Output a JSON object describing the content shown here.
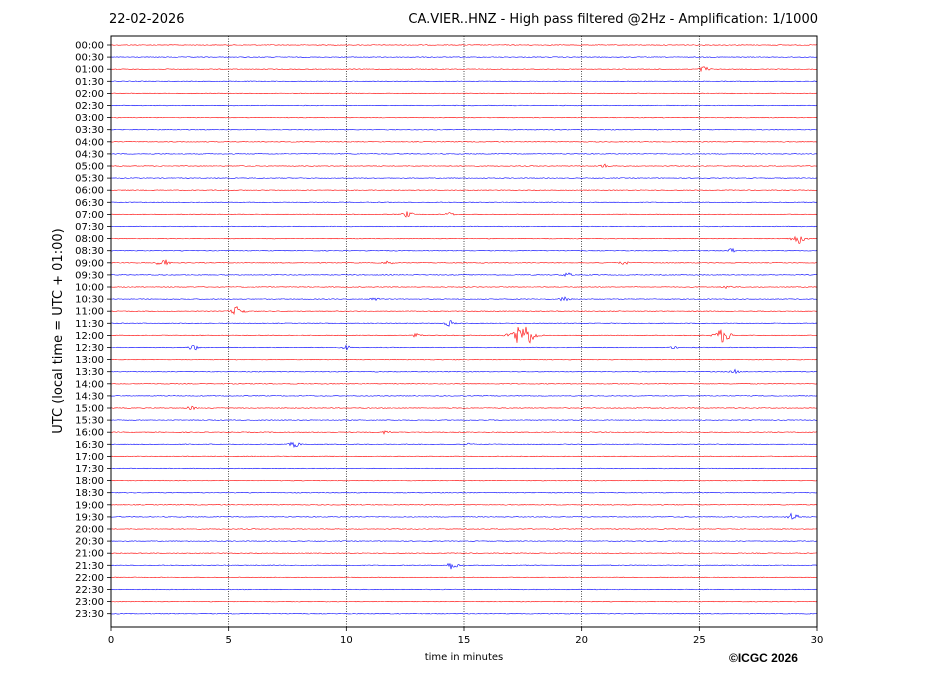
{
  "chart_data": {
    "type": "line",
    "date": "22-02-2026",
    "title": "CA.VIER..HNZ - High pass filtered @2Hz - Amplification: 1/1000",
    "xlabel": "time in minutes",
    "ylabel": "UTC (local time = UTC + 01:00)",
    "xlim": [
      0,
      30
    ],
    "xticks": [
      "0",
      "5",
      "10",
      "15",
      "20",
      "25",
      "30"
    ],
    "vertical_grid_at": [
      5,
      10,
      15,
      20,
      25
    ],
    "trace_labels": [
      "00:00",
      "00:30",
      "01:00",
      "01:30",
      "02:00",
      "02:30",
      "03:00",
      "03:30",
      "04:00",
      "04:30",
      "05:00",
      "05:30",
      "06:00",
      "06:30",
      "07:00",
      "07:30",
      "08:00",
      "08:30",
      "09:00",
      "09:30",
      "10:00",
      "10:30",
      "11:00",
      "11:30",
      "12:00",
      "12:30",
      "13:00",
      "13:30",
      "14:00",
      "14:30",
      "15:00",
      "15:30",
      "16:00",
      "16:30",
      "17:00",
      "17:30",
      "18:00",
      "18:30",
      "19:00",
      "19:30",
      "20:00",
      "20:30",
      "21:00",
      "21:30",
      "22:00",
      "22:30",
      "23:00",
      "23:30"
    ],
    "trace_colors": [
      "#ff0000",
      "#0000ff"
    ],
    "events": [
      {
        "trace": "01:00",
        "minute": 25.2,
        "amp": 3
      },
      {
        "trace": "05:00",
        "minute": 21.0,
        "amp": 2
      },
      {
        "trace": "07:00",
        "minute": 12.6,
        "amp": 3
      },
      {
        "trace": "07:00",
        "minute": 14.4,
        "amp": 2
      },
      {
        "trace": "08:00",
        "minute": 29.2,
        "amp": 5
      },
      {
        "trace": "08:30",
        "minute": 26.4,
        "amp": 2
      },
      {
        "trace": "09:00",
        "minute": 2.2,
        "amp": 4
      },
      {
        "trace": "09:00",
        "minute": 11.8,
        "amp": 2
      },
      {
        "trace": "09:00",
        "minute": 21.8,
        "amp": 2
      },
      {
        "trace": "09:30",
        "minute": 19.4,
        "amp": 2
      },
      {
        "trace": "10:00",
        "minute": 26.2,
        "amp": 2
      },
      {
        "trace": "10:30",
        "minute": 19.3,
        "amp": 3
      },
      {
        "trace": "10:30",
        "minute": 11.2,
        "amp": 2
      },
      {
        "trace": "11:00",
        "minute": 5.4,
        "amp": 5
      },
      {
        "trace": "11:30",
        "minute": 14.4,
        "amp": 3
      },
      {
        "trace": "12:00",
        "minute": 17.5,
        "amp": 12
      },
      {
        "trace": "12:00",
        "minute": 26.0,
        "amp": 7
      },
      {
        "trace": "12:00",
        "minute": 13.0,
        "amp": 2
      },
      {
        "trace": "12:30",
        "minute": 3.5,
        "amp": 3
      },
      {
        "trace": "12:30",
        "minute": 24.0,
        "amp": 2
      },
      {
        "trace": "12:30",
        "minute": 10.0,
        "amp": 2
      },
      {
        "trace": "13:30",
        "minute": 26.5,
        "amp": 2
      },
      {
        "trace": "15:00",
        "minute": 3.4,
        "amp": 2
      },
      {
        "trace": "16:00",
        "minute": 11.7,
        "amp": 2
      },
      {
        "trace": "16:30",
        "minute": 7.8,
        "amp": 3
      },
      {
        "trace": "16:30",
        "minute": 15.2,
        "amp": 2
      },
      {
        "trace": "19:30",
        "minute": 29.0,
        "amp": 4
      },
      {
        "trace": "21:30",
        "minute": 14.5,
        "amp": 4
      }
    ],
    "copyright": "©ICGC 2026"
  }
}
